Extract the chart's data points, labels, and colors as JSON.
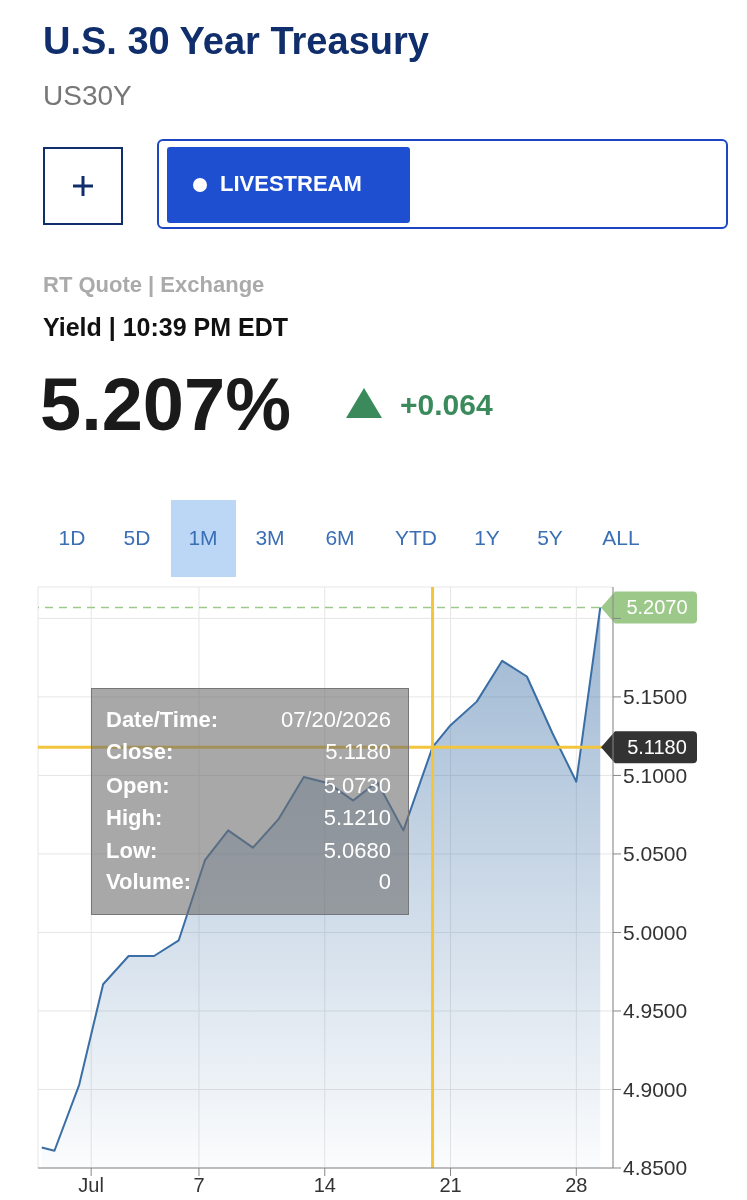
{
  "chart_data": {
    "type": "area",
    "title": "U.S. 30 Year Treasury",
    "subtitle": "US30Y",
    "annotations": [
      "RT Quote | Exchange",
      "Yield | 10:39 PM EDT",
      "5.207%",
      "+0.064",
      "LIVESTREAM",
      "1D",
      "5D",
      "1M",
      "3M",
      "6M",
      "YTD",
      "1Y",
      "5Y",
      "ALL",
      "Date/Time:",
      "07/20/2026",
      "Close:",
      "5.1180",
      "Open:",
      "5.0730",
      "High:",
      "5.1210",
      "Low:",
      "5.0680",
      "Volume:",
      "0"
    ],
    "x": [
      "2026-06-28T06:00",
      "2026-06-28T23:00",
      "2026-06-30T08:00",
      "2026-07-01T16:00",
      "2026-07-03T02:00",
      "2026-07-04T12:00",
      "2026-07-05T21:00",
      "2026-07-07T08:00",
      "2026-07-08T15:00",
      "2026-07-10T00:00",
      "2026-07-11T10:00",
      "2026-07-12T20:00",
      "2026-07-14T05:00",
      "2026-07-15T14:00",
      "2026-07-16T22:00",
      "2026-07-18T09:00",
      "2026-07-20T00:00",
      "2026-07-21T00:00",
      "2026-07-22T11:00",
      "2026-07-23T21:00",
      "2026-07-25T06:00",
      "2026-07-26T16:00",
      "2026-07-28T00:00",
      "2026-07-29T08:00"
    ],
    "series": [
      {
        "color": "#3a6ea5",
        "values": [
          4.863,
          4.861,
          4.903,
          4.967,
          4.985,
          4.985,
          4.995,
          5.046,
          5.065,
          5.054,
          5.072,
          5.099,
          5.095,
          5.084,
          5.096,
          5.065,
          5.118,
          5.132,
          5.147,
          5.173,
          5.163,
          5.127,
          5.096,
          5.207
        ]
      }
    ],
    "xlim": [
      "2026-06-28T01:00",
      "2026-07-30T01:00"
    ],
    "xticks": [
      {
        "value": "2026-07-01",
        "label": "Jul"
      },
      {
        "value": "2026-07-07",
        "label": "7"
      },
      {
        "value": "2026-07-14",
        "label": "14"
      },
      {
        "value": "2026-07-21",
        "label": "21"
      },
      {
        "value": "2026-07-28",
        "label": "28"
      }
    ],
    "ylim": [
      4.85,
      5.22
    ],
    "yticks": [
      {
        "value": 4.85,
        "label": "4.8500"
      },
      {
        "value": 4.9,
        "label": "4.9000"
      },
      {
        "value": 4.95,
        "label": "4.9500"
      },
      {
        "value": 5.0,
        "label": "5.0000"
      },
      {
        "value": 5.05,
        "label": "5.0500"
      },
      {
        "value": 5.1,
        "label": "5.1000"
      },
      {
        "value": 5.15,
        "label": "5.1500"
      },
      {
        "value": 5.2,
        "label": null
      }
    ],
    "ref_lines": [
      {
        "axis": "y",
        "value": 5.207,
        "label": "5.2070",
        "color": "#9cc98a",
        "line_style": "dashed"
      },
      {
        "axis": "y",
        "value": 5.118,
        "label": "5.1180",
        "color": "#f2c53d",
        "line_style": "solid"
      },
      {
        "axis": "x",
        "value": "2026-07-20",
        "color": "#f2c53d",
        "line_style": "solid"
      }
    ],
    "grid": true,
    "marker": "none",
    "line_style": "solid"
  }
}
